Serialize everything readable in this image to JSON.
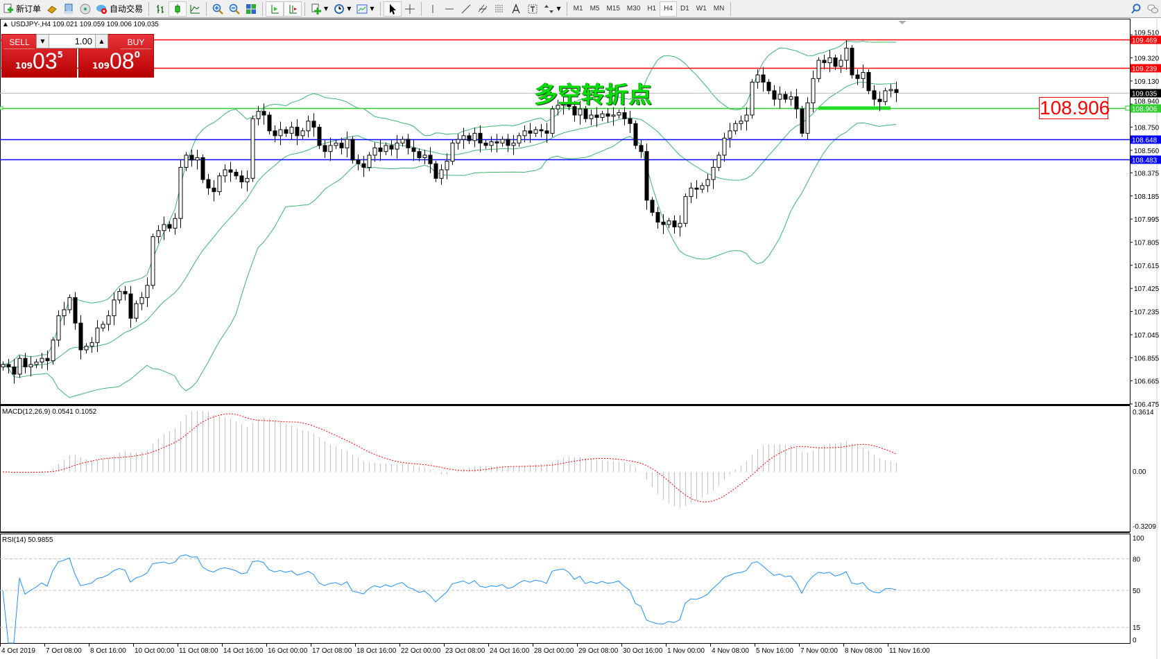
{
  "toolbar": {
    "new_order": "新订单",
    "auto_trading": "自动交易",
    "icons": [
      "new-order-icon",
      "market-watch-icon",
      "navigator-icon",
      "signals-icon",
      "auto-trading-icon",
      "bar-chart-icon",
      "candlestick-icon",
      "line-chart-icon",
      "zoom-in-icon",
      "zoom-out-icon",
      "tile-windows-icon",
      "auto-scroll-icon",
      "chart-shift-icon",
      "indicators-icon",
      "periods-icon",
      "templates-icon",
      "cursor-icon",
      "crosshair-icon",
      "vertical-line-icon",
      "horizontal-line-icon",
      "trendline-icon",
      "equidistant-channel-icon",
      "fibonacci-icon",
      "text-icon",
      "text-label-icon",
      "arrows-icon",
      "search-icon",
      "chat-icon"
    ],
    "timeframes": [
      "M1",
      "M5",
      "M15",
      "M30",
      "H1",
      "H4",
      "D1",
      "W1",
      "MN"
    ],
    "active_timeframe": "H4"
  },
  "chart": {
    "title": "USDJPY-,H4  109.021 109.059 109.006 109.035",
    "annotation": "多空转折点",
    "price_box": "108.906",
    "price_range": [
      106.475,
      109.636
    ],
    "price_ticks": [
      "109.510",
      "109.320",
      "109.130",
      "108.940",
      "108.750",
      "108.560",
      "108.375",
      "108.185",
      "107.995",
      "107.805",
      "107.615",
      "107.425",
      "107.235",
      "107.045",
      "106.855",
      "106.665",
      "106.475"
    ],
    "hlines": [
      {
        "price": 109.469,
        "label": "109.469",
        "color": "#ff0000"
      },
      {
        "price": 109.239,
        "label": "109.239",
        "color": "#ff0000"
      },
      {
        "price": 109.035,
        "label": "109.035",
        "color": "#c0c0c0",
        "label_bg": "#000000"
      },
      {
        "price": 108.906,
        "label": "108.906",
        "color": "#32cd32"
      },
      {
        "price": 108.648,
        "label": "108.648",
        "color": "#0000ff"
      },
      {
        "price": 108.483,
        "label": "108.483",
        "color": "#0000ff"
      }
    ],
    "band_color": "#3cb371",
    "closes": [
      106.8,
      106.78,
      106.72,
      106.85,
      106.78,
      106.8,
      106.82,
      106.85,
      106.83,
      107.0,
      107.2,
      107.25,
      107.35,
      107.14,
      106.92,
      106.95,
      106.98,
      107.1,
      107.13,
      107.2,
      107.33,
      107.4,
      107.38,
      107.18,
      107.3,
      107.35,
      107.45,
      107.85,
      107.9,
      107.95,
      107.92,
      108.0,
      108.42,
      108.52,
      108.48,
      108.5,
      108.32,
      108.25,
      108.22,
      108.35,
      108.4,
      108.38,
      108.35,
      108.3,
      108.33,
      108.82,
      108.88,
      108.85,
      108.72,
      108.68,
      108.73,
      108.7,
      108.75,
      108.68,
      108.72,
      108.8,
      108.75,
      108.6,
      108.55,
      108.6,
      108.62,
      108.58,
      108.65,
      108.48,
      108.45,
      108.42,
      108.52,
      108.58,
      108.55,
      108.6,
      108.57,
      108.62,
      108.65,
      108.58,
      108.55,
      108.5,
      108.52,
      108.45,
      108.33,
      108.4,
      108.47,
      108.62,
      108.65,
      108.68,
      108.64,
      108.7,
      108.62,
      108.6,
      108.63,
      108.62,
      108.65,
      108.6,
      108.62,
      108.68,
      108.72,
      108.7,
      108.73,
      108.72,
      108.7,
      108.9,
      108.93,
      108.95,
      108.92,
      108.85,
      108.9,
      108.82,
      108.85,
      108.83,
      108.86,
      108.84,
      108.85,
      108.87,
      108.82,
      108.78,
      108.6,
      108.55,
      108.15,
      108.05,
      107.97,
      107.95,
      107.98,
      107.93,
      107.96,
      108.18,
      108.25,
      108.24,
      108.27,
      108.32,
      108.42,
      108.52,
      108.66,
      108.72,
      108.78,
      108.8,
      108.85,
      109.12,
      109.18,
      109.12,
      109.05,
      108.98,
      109.02,
      108.98,
      109.0,
      108.9,
      108.7,
      108.95,
      109.15,
      109.3,
      109.28,
      109.32,
      109.25,
      109.3,
      109.4,
      109.18,
      109.15,
      109.2,
      109.05,
      108.98,
      108.96,
      109.05,
      109.06,
      109.035
    ]
  },
  "macd": {
    "label": "MACD(12,26,9) 0.0541 0.1052",
    "range": [
      -0.3209,
      0.3614
    ],
    "ticks": [
      "0.3614",
      "0.00",
      "-0.3209"
    ],
    "hist_color": "#c0c0c0",
    "signal_color": "#ff0000"
  },
  "rsi": {
    "label": "RSI(14) 50.9855",
    "ticks": [
      "100",
      "80",
      "50",
      "15",
      "0"
    ],
    "levels": [
      80,
      50,
      15
    ],
    "color": "#1e90ff"
  },
  "trade_panel": {
    "sell_label": "SELL",
    "buy_label": "BUY",
    "lot": "1.00",
    "sell_big": "109",
    "sell_pips": "03",
    "sell_frac": "5",
    "buy_big": "109",
    "buy_pips": "08",
    "buy_frac": "0"
  },
  "time_axis": [
    "4 Oct 2019",
    "7 Oct 08:00",
    "8 Oct 16:00",
    "10 Oct 00:00",
    "11 Oct 08:00",
    "14 Oct 16:00",
    "16 Oct 00:00",
    "17 Oct 08:00",
    "18 Oct 16:00",
    "22 Oct 00:00",
    "23 Oct 08:00",
    "24 Oct 16:00",
    "28 Oct 00:00",
    "29 Oct 08:00",
    "30 Oct 16:00",
    "1 Nov 00:00",
    "4 Nov 08:00",
    "5 Nov 16:00",
    "7 Nov 00:00",
    "8 Nov 08:00",
    "11 Nov 16:00"
  ]
}
